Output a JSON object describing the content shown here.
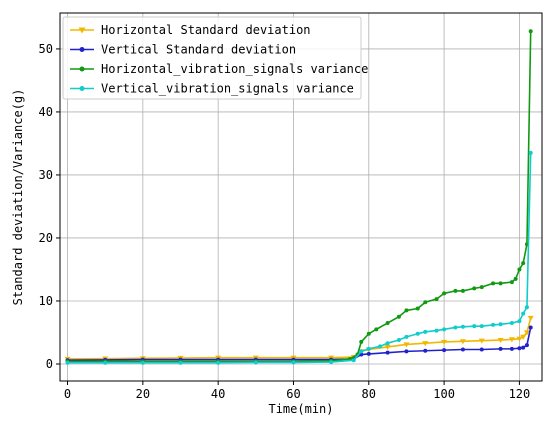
{
  "chart_data": {
    "type": "line",
    "xlabel": "Time(min)",
    "ylabel": "Standard deviation/Variance(g)",
    "xlim": [
      -2,
      126
    ],
    "ylim": [
      -2.7,
      55.7
    ],
    "xticks": [
      0,
      20,
      40,
      60,
      80,
      100,
      120
    ],
    "yticks": [
      0,
      10,
      20,
      30,
      40,
      50
    ],
    "grid": true,
    "legend_position": "top-left",
    "series": [
      {
        "name": "Horizontal Standard deviation",
        "color": "#f2b800",
        "marker": "triangle-down",
        "x": [
          0,
          10,
          20,
          30,
          40,
          50,
          60,
          70,
          76,
          78,
          80,
          85,
          90,
          95,
          100,
          105,
          110,
          115,
          118,
          120,
          121,
          122,
          123
        ],
        "y": [
          0.8,
          0.85,
          0.9,
          0.95,
          1.0,
          1.0,
          1.0,
          1.0,
          1.1,
          2.0,
          2.3,
          2.7,
          3.1,
          3.3,
          3.5,
          3.6,
          3.7,
          3.8,
          3.9,
          4.0,
          4.3,
          5.0,
          7.3
        ]
      },
      {
        "name": "Vertical Standard deviation",
        "color": "#2222cc",
        "marker": "circle",
        "x": [
          0,
          10,
          20,
          30,
          40,
          50,
          60,
          70,
          76,
          78,
          80,
          85,
          90,
          95,
          100,
          105,
          110,
          115,
          118,
          120,
          121,
          122,
          123
        ],
        "y": [
          0.6,
          0.65,
          0.7,
          0.7,
          0.7,
          0.7,
          0.7,
          0.7,
          0.8,
          1.5,
          1.6,
          1.8,
          2.0,
          2.1,
          2.2,
          2.3,
          2.3,
          2.4,
          2.4,
          2.5,
          2.6,
          3.0,
          5.8
        ]
      },
      {
        "name": "Horizontal_vibration_signals variance",
        "color": "#119911",
        "marker": "circle",
        "x": [
          0,
          10,
          20,
          30,
          40,
          50,
          60,
          70,
          75,
          77,
          78,
          80,
          82,
          85,
          88,
          90,
          93,
          95,
          98,
          100,
          103,
          105,
          108,
          110,
          113,
          115,
          118,
          119,
          120,
          121,
          122,
          123
        ],
        "y": [
          0.4,
          0.4,
          0.4,
          0.4,
          0.4,
          0.4,
          0.4,
          0.5,
          0.8,
          1.5,
          3.5,
          4.8,
          5.5,
          6.5,
          7.5,
          8.5,
          8.8,
          9.8,
          10.3,
          11.2,
          11.6,
          11.6,
          12.0,
          12.2,
          12.8,
          12.8,
          13.0,
          13.5,
          15.0,
          16.0,
          19.0,
          52.8
        ]
      },
      {
        "name": "Vertical_vibration_signals variance",
        "color": "#11cccc",
        "marker": "circle",
        "x": [
          0,
          10,
          20,
          30,
          40,
          50,
          60,
          70,
          76,
          78,
          80,
          83,
          85,
          88,
          90,
          93,
          95,
          98,
          100,
          103,
          105,
          108,
          110,
          113,
          115,
          118,
          120,
          121,
          122,
          123
        ],
        "y": [
          0.2,
          0.2,
          0.2,
          0.2,
          0.2,
          0.25,
          0.25,
          0.3,
          0.6,
          2.0,
          2.4,
          2.8,
          3.3,
          3.8,
          4.3,
          4.8,
          5.1,
          5.3,
          5.5,
          5.8,
          5.9,
          6.0,
          6.0,
          6.2,
          6.3,
          6.5,
          6.8,
          8.0,
          9.0,
          33.5
        ]
      }
    ]
  }
}
